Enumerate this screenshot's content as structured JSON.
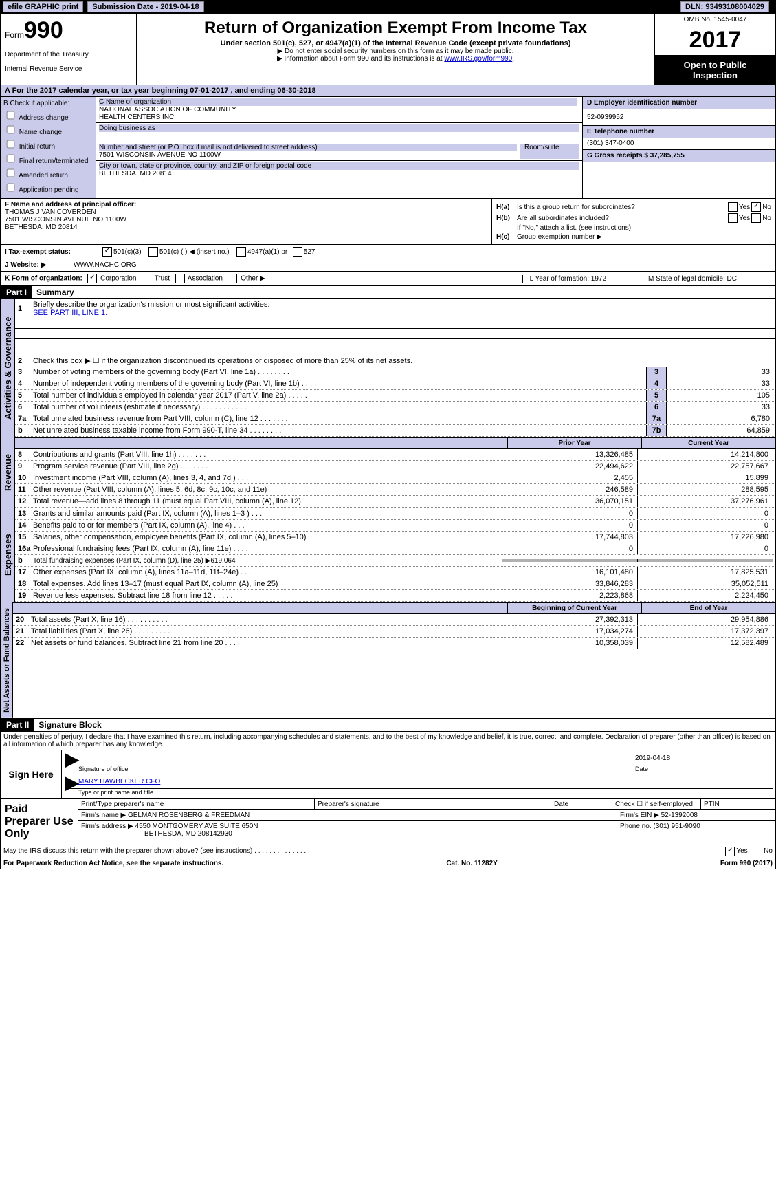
{
  "topbar": {
    "efile": "efile GRAPHIC print",
    "submission_label": "Submission Date - 2019-04-18",
    "dln_label": "DLN: 93493108004029"
  },
  "header": {
    "form_label": "Form",
    "form_num": "990",
    "dept1": "Department of the Treasury",
    "dept2": "Internal Revenue Service",
    "title": "Return of Organization Exempt From Income Tax",
    "sub1": "Under section 501(c), 527, or 4947(a)(1) of the Internal Revenue Code (except private foundations)",
    "sub2a": "▶ Do not enter social security numbers on this form as it may be made public.",
    "sub2b_pre": "▶ Information about Form 990 and its instructions is at ",
    "sub2b_link": "www.IRS.gov/form990",
    "omb": "OMB No. 1545-0047",
    "year": "2017",
    "open1": "Open to Public",
    "open2": "Inspection"
  },
  "row_a": "A   For the 2017 calendar year, or tax year beginning 07-01-2017       , and ending 06-30-2018",
  "col_b": {
    "head": "B Check if applicable:",
    "l1": "Address change",
    "l2": "Name change",
    "l3": "Initial return",
    "l4": "Final return/terminated",
    "l5": "Amended return",
    "l6": "Application pending"
  },
  "col_c": {
    "c_label": "C Name of organization",
    "name1": "NATIONAL ASSOCIATION OF COMMUNITY",
    "name2": "HEALTH CENTERS INC",
    "dba": "Doing business as",
    "addr_label": "Number and street (or P.O. box if mail is not delivered to street address)",
    "room_label": "Room/suite",
    "addr": "7501 WISCONSIN AVENUE NO 1100W",
    "city_label": "City or town, state or province, country, and ZIP or foreign postal code",
    "city": "BETHESDA, MD   20814"
  },
  "col_d": {
    "d_label": "D Employer identification number",
    "ein": "52-0939952",
    "e_label": "E Telephone number",
    "phone": "(301) 347-0400",
    "g_label": "G Gross receipts $ 37,285,755"
  },
  "col_f": {
    "f_label": "F Name and address of principal officer:",
    "name": "THOMAS J VAN COVERDEN",
    "addr": "7501 WISCONSIN AVENUE NO 1100W",
    "city": "BETHESDA, MD   20814"
  },
  "col_h": {
    "ha_lab": "H(a)",
    "ha_txt": "Is this a group return for subordinates?",
    "hb_lab": "H(b)",
    "hb_txt": "Are all subordinates included?",
    "hb_note": "If \"No,\" attach a list. (see instructions)",
    "hc_lab": "H(c)",
    "hc_txt": "Group exemption number ▶",
    "yes": "Yes",
    "no": "No"
  },
  "sec_i": {
    "label": "I    Tax-exempt status:",
    "o1": "501(c)(3)",
    "o2": "501(c) (   ) ◀ (insert no.)",
    "o3": "4947(a)(1) or",
    "o4": "527"
  },
  "sec_j": {
    "label": "J    Website: ▶",
    "url": "WWW.NACHC.ORG"
  },
  "sec_k": {
    "label": "K Form of organization:",
    "o1": "Corporation",
    "o2": "Trust",
    "o3": "Association",
    "o4": "Other ▶",
    "l_label": "L Year of formation: 1972",
    "m_label": "M State of legal domicile: DC"
  },
  "part1": {
    "hdr": "Part I",
    "title": "Summary",
    "vert_gov": "Activities & Governance",
    "vert_rev": "Revenue",
    "vert_exp": "Expenses",
    "vert_net": "Net Assets or\nFund Balances",
    "l1": "Briefly describe the organization's mission or most significant activities:",
    "l1_link": "SEE PART III, LINE 1.",
    "l2": "Check this box ▶ ☐ if the organization discontinued its operations or disposed of more than 25% of its net assets.",
    "lines_single": [
      {
        "n": "3",
        "t": "Number of voting members of the governing body (Part VI, line 1a)   .    .    .    .    .    .    .    .",
        "b": "3",
        "v": "33"
      },
      {
        "n": "4",
        "t": "Number of independent voting members of the governing body (Part VI, line 1b)    .    .    .    .",
        "b": "4",
        "v": "33"
      },
      {
        "n": "5",
        "t": "Total number of individuals employed in calendar year 2017 (Part V, line 2a)    .    .    .    .    .",
        "b": "5",
        "v": "105"
      },
      {
        "n": "6",
        "t": "Total number of volunteers (estimate if necessary)    .    .    .    .    .    .    .    .    .    .    .",
        "b": "6",
        "v": "33"
      },
      {
        "n": "7a",
        "t": "Total unrelated business revenue from Part VIII, column (C), line 12    .    .    .    .    .    .    .",
        "b": "7a",
        "v": "6,780"
      },
      {
        "n": "b",
        "t": "Net unrelated business taxable income from Form 990-T, line 34    .    .    .    .    .    .    .    .",
        "b": "7b",
        "v": "64,859"
      }
    ],
    "hdr_py": "Prior Year",
    "hdr_cy": "Current Year",
    "lines_rev": [
      {
        "n": "8",
        "t": "Contributions and grants (Part VIII, line 1h)    .    .    .    .    .    .    .",
        "py": "13,326,485",
        "cy": "14,214,800"
      },
      {
        "n": "9",
        "t": "Program service revenue (Part VIII, line 2g)    .    .    .    .    .    .    .",
        "py": "22,494,622",
        "cy": "22,757,667"
      },
      {
        "n": "10",
        "t": "Investment income (Part VIII, column (A), lines 3, 4, and 7d )    .    .    .",
        "py": "2,455",
        "cy": "15,899"
      },
      {
        "n": "11",
        "t": "Other revenue (Part VIII, column (A), lines 5, 6d, 8c, 9c, 10c, and 11e)",
        "py": "246,589",
        "cy": "288,595"
      },
      {
        "n": "12",
        "t": "Total revenue—add lines 8 through 11 (must equal Part VIII, column (A), line 12)",
        "py": "36,070,151",
        "cy": "37,276,961"
      }
    ],
    "lines_exp": [
      {
        "n": "13",
        "t": "Grants and similar amounts paid (Part IX, column (A), lines 1–3 )    .    .    .",
        "py": "0",
        "cy": "0"
      },
      {
        "n": "14",
        "t": "Benefits paid to or for members (Part IX, column (A), line 4)    .    .    .",
        "py": "0",
        "cy": "0"
      },
      {
        "n": "15",
        "t": "Salaries, other compensation, employee benefits (Part IX, column (A), lines 5–10)",
        "py": "17,744,803",
        "cy": "17,226,980"
      },
      {
        "n": "16a",
        "t": "Professional fundraising fees (Part IX, column (A), line 11e)    .    .    .    .",
        "py": "0",
        "cy": "0"
      },
      {
        "n": "b",
        "t": "Total fundraising expenses (Part IX, column (D), line 25) ▶619,064",
        "py": "",
        "cy": "",
        "grey": true,
        "small": true
      },
      {
        "n": "17",
        "t": "Other expenses (Part IX, column (A), lines 11a–11d, 11f–24e)    .    .    .",
        "py": "16,101,480",
        "cy": "17,825,531"
      },
      {
        "n": "18",
        "t": "Total expenses. Add lines 13–17 (must equal Part IX, column (A), line 25)",
        "py": "33,846,283",
        "cy": "35,052,511"
      },
      {
        "n": "19",
        "t": "Revenue less expenses. Subtract line 18 from line 12    .    .    .    .    .",
        "py": "2,223,868",
        "cy": "2,224,450"
      }
    ],
    "hdr_by": "Beginning of Current Year",
    "hdr_ey": "End of Year",
    "lines_net": [
      {
        "n": "20",
        "t": "Total assets (Part X, line 16)    .    .    .    .    .    .    .    .    .    .",
        "py": "27,392,313",
        "cy": "29,954,886"
      },
      {
        "n": "21",
        "t": "Total liabilities (Part X, line 26)    .    .    .    .    .    .    .    .    .",
        "py": "17,034,274",
        "cy": "17,372,397"
      },
      {
        "n": "22",
        "t": "Net assets or fund balances. Subtract line 21 from line 20    .    .    .    .",
        "py": "10,358,039",
        "cy": "12,582,489"
      }
    ]
  },
  "part2": {
    "hdr": "Part II",
    "title": "Signature Block",
    "penalty": "Under penalties of perjury, I declare that I have examined this return, including accompanying schedules and statements, and to the best of my knowledge and belief, it is true, correct, and complete. Declaration of preparer (other than officer) is based on all information of which preparer has any knowledge.",
    "sign_here": "Sign Here",
    "sig_date": "2019-04-18",
    "sig_officer_lab": "Signature of officer",
    "date_lab": "Date",
    "officer_name": "MARY HAWBECKER  CFO",
    "officer_name_lab": "Type or print name and title",
    "paid": "Paid Preparer Use Only",
    "p_name_lab": "Print/Type preparer's name",
    "p_sig_lab": "Preparer's signature",
    "p_date_lab": "Date",
    "p_check": "Check ☐ if self-employed",
    "p_ptin": "PTIN",
    "firm_name_lab": "Firm's name     ▶",
    "firm_name": "GELMAN ROSENBERG & FREEDMAN",
    "firm_ein_lab": "Firm's EIN ▶",
    "firm_ein": "52-1392008",
    "firm_addr_lab": "Firm's address ▶",
    "firm_addr1": "4550 MONTGOMERY AVE SUITE 650N",
    "firm_addr2": "BETHESDA, MD  208142930",
    "firm_phone_lab": "Phone no.",
    "firm_phone": "(301) 951-9090",
    "discuss": "May the IRS discuss this return with the preparer shown above? (see instructions)    .    .    .    .    .    .    .    .    .    .    .    .    .    .    .",
    "yes": "Yes",
    "no": "No"
  },
  "footer": {
    "pra": "For Paperwork Reduction Act Notice, see the separate instructions.",
    "cat": "Cat. No. 11282Y",
    "form": "Form 990 (2017)"
  }
}
